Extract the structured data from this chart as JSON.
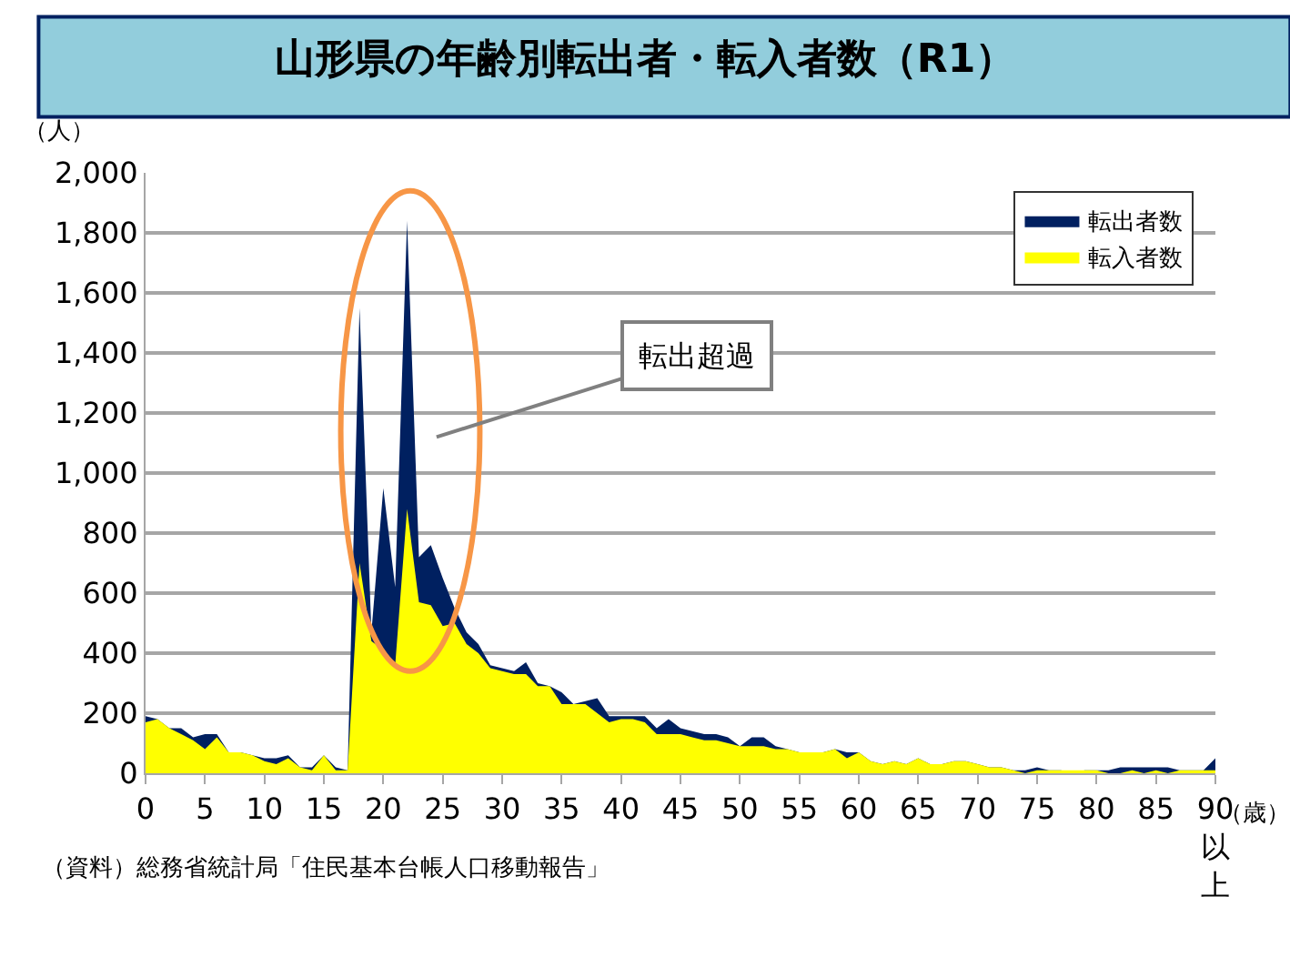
{
  "chart_data": {
    "type": "area",
    "title": "山形県の年齢別転出者・転入者数（R1）",
    "ylabel": "（人）",
    "xlabel": "（歳）",
    "x": [
      0,
      1,
      2,
      3,
      4,
      5,
      6,
      7,
      8,
      9,
      10,
      11,
      12,
      13,
      14,
      15,
      16,
      17,
      18,
      19,
      20,
      21,
      22,
      23,
      24,
      25,
      26,
      27,
      28,
      29,
      30,
      31,
      32,
      33,
      34,
      35,
      36,
      37,
      38,
      39,
      40,
      41,
      42,
      43,
      44,
      45,
      46,
      47,
      48,
      49,
      50,
      51,
      52,
      53,
      54,
      55,
      56,
      57,
      58,
      59,
      60,
      61,
      62,
      63,
      64,
      65,
      66,
      67,
      68,
      69,
      70,
      71,
      72,
      73,
      74,
      75,
      76,
      77,
      78,
      79,
      80,
      81,
      82,
      83,
      84,
      85,
      86,
      87,
      88,
      89,
      90
    ],
    "series": [
      {
        "name": "転出者数",
        "color": "#002060",
        "values": [
          190,
          180,
          150,
          150,
          120,
          130,
          130,
          70,
          70,
          60,
          50,
          50,
          60,
          20,
          20,
          60,
          20,
          10,
          1550,
          470,
          950,
          620,
          1840,
          720,
          760,
          650,
          550,
          470,
          430,
          360,
          350,
          340,
          370,
          300,
          290,
          270,
          230,
          240,
          250,
          190,
          190,
          190,
          190,
          150,
          180,
          150,
          140,
          130,
          130,
          120,
          90,
          120,
          120,
          90,
          80,
          70,
          70,
          70,
          80,
          70,
          70,
          40,
          30,
          40,
          30,
          50,
          30,
          30,
          40,
          40,
          30,
          20,
          20,
          10,
          10,
          20,
          10,
          10,
          0,
          10,
          10,
          10,
          20,
          20,
          20,
          20,
          20,
          10,
          10,
          10,
          50
        ]
      },
      {
        "name": "転入者数",
        "color": "#ffff00",
        "values": [
          170,
          180,
          150,
          130,
          110,
          80,
          120,
          70,
          70,
          60,
          40,
          30,
          50,
          20,
          10,
          60,
          10,
          10,
          700,
          440,
          410,
          360,
          880,
          570,
          560,
          490,
          500,
          430,
          400,
          350,
          340,
          330,
          330,
          290,
          290,
          230,
          230,
          230,
          200,
          170,
          180,
          180,
          170,
          130,
          130,
          130,
          120,
          110,
          110,
          100,
          90,
          90,
          90,
          80,
          80,
          70,
          70,
          70,
          80,
          50,
          70,
          40,
          30,
          40,
          30,
          50,
          30,
          30,
          40,
          40,
          30,
          20,
          20,
          10,
          0,
          10,
          10,
          10,
          10,
          10,
          10,
          0,
          0,
          10,
          0,
          10,
          0,
          10,
          10,
          10,
          10
        ]
      }
    ],
    "xlim": [
      0,
      90
    ],
    "xticks": [
      0,
      5,
      10,
      15,
      20,
      25,
      30,
      35,
      40,
      45,
      50,
      55,
      60,
      65,
      70,
      75,
      80,
      85,
      {
        "value": 90,
        "label": "90以上"
      }
    ],
    "ylim": [
      0,
      2000
    ],
    "yticks": [
      0,
      {
        "value": 200,
        "label": "200"
      },
      {
        "value": 400,
        "label": "400"
      },
      {
        "value": 600,
        "label": "600"
      },
      {
        "value": 800,
        "label": "800"
      },
      {
        "value": 1000,
        "label": "1,000"
      },
      {
        "value": 1200,
        "label": "1,200"
      },
      {
        "value": 1400,
        "label": "1,400"
      },
      {
        "value": 1600,
        "label": "1,600"
      },
      {
        "value": 1800,
        "label": "1,800"
      },
      {
        "value": 2000,
        "label": "2,000"
      }
    ],
    "grid": "y",
    "legend": "top right",
    "annotations": [
      "転出超過",
      "（資料）総務省統計局「住民基本台帳人口移動報告」"
    ]
  }
}
